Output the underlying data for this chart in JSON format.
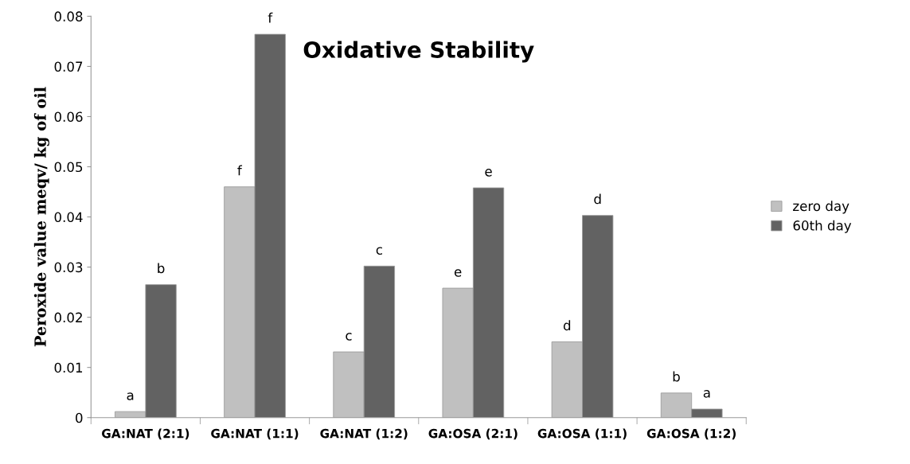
{
  "chart_data": {
    "type": "bar",
    "title": "Oxidative Stability",
    "ylabel": "Peroxide value meqv/ kg of oil",
    "categories": [
      "GA:NAT (2:1)",
      "GA:NAT (1:1)",
      "GA:NAT (1:2)",
      "GA:OSA (2:1)",
      "GA:OSA (1:1)",
      "GA:OSA (1:2)"
    ],
    "series": [
      {
        "name": "zero day",
        "color": "#c0c0c0",
        "values": [
          0.0012,
          0.046,
          0.0131,
          0.0258,
          0.0151,
          0.0049
        ]
      },
      {
        "name": "60th day",
        "color": "#626262",
        "values": [
          0.0265,
          0.0764,
          0.0302,
          0.0458,
          0.0403,
          0.0017
        ]
      }
    ],
    "ylim": [
      0,
      0.08
    ],
    "yticks": [
      0,
      0.01,
      0.02,
      0.03,
      0.04,
      0.05,
      0.06,
      0.07,
      0.08
    ],
    "grid": false,
    "legend": "right",
    "annotations": [
      {
        "text": "a",
        "x": "GA:NAT (2:1)",
        "y": 0.0012
      },
      {
        "text": "b",
        "x": "GA:NAT (2:1)",
        "y": 0.0265
      },
      {
        "text": "f",
        "x": "GA:NAT (1:1)",
        "y": 0.046
      },
      {
        "text": "f",
        "x": "GA:NAT (1:1)",
        "y": 0.0764
      },
      {
        "text": "c",
        "x": "GA:NAT (1:2)",
        "y": 0.0131
      },
      {
        "text": "c",
        "x": "GA:NAT (1:2)",
        "y": 0.0302
      },
      {
        "text": "e",
        "x": "GA:OSA (2:1)",
        "y": 0.0258
      },
      {
        "text": "e",
        "x": "GA:OSA (2:1)",
        "y": 0.0458
      },
      {
        "text": "d",
        "x": "GA:OSA (1:1)",
        "y": 0.0151
      },
      {
        "text": "d",
        "x": "GA:OSA (1:1)",
        "y": 0.0403
      },
      {
        "text": "b",
        "x": "GA:OSA (1:2)",
        "y": 0.0049
      },
      {
        "text": "a",
        "x": "GA:OSA (1:2)",
        "y": 0.0017
      }
    ]
  }
}
